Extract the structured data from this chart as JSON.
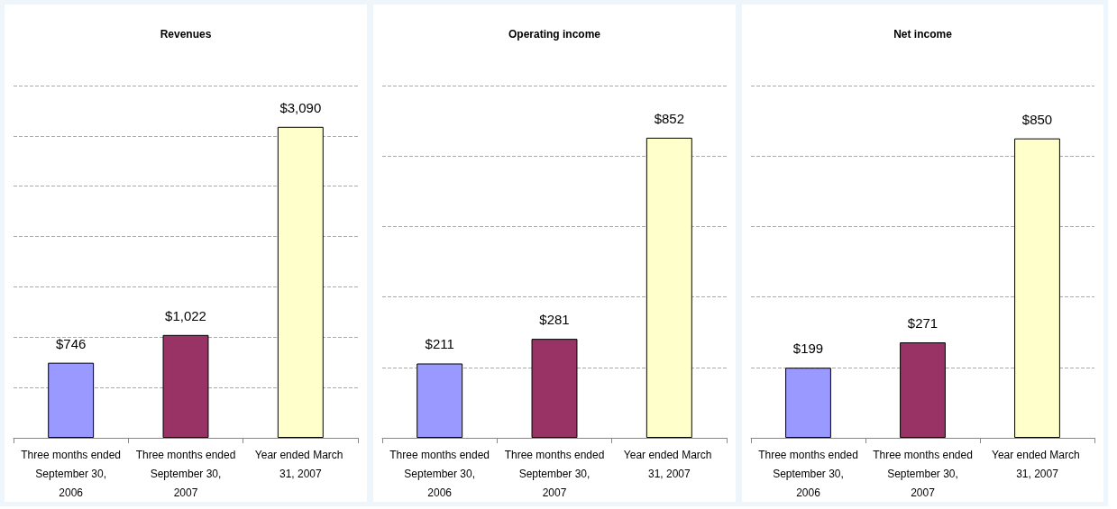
{
  "chart_data": [
    {
      "type": "bar",
      "title": "Revenues",
      "categories": [
        "Three months ended September 30, 2006",
        "Three months ended September 30, 2007",
        "Year ended March 31, 2007"
      ],
      "values": [
        746,
        1022,
        3090
      ],
      "value_labels": [
        "$746",
        "$1,022",
        "$3,090"
      ],
      "colors": [
        "#9999ff",
        "#993366",
        "#ffffcc"
      ],
      "grid": "y"
    },
    {
      "type": "bar",
      "title": "Operating income",
      "categories": [
        "Three months ended September 30, 2006",
        "Three months ended September 30, 2007",
        "Year ended March 31, 2007"
      ],
      "values": [
        211,
        281,
        852
      ],
      "value_labels": [
        "$211",
        "$281",
        "$852"
      ],
      "colors": [
        "#9999ff",
        "#993366",
        "#ffffcc"
      ],
      "grid": "y"
    },
    {
      "type": "bar",
      "title": "Net income",
      "categories": [
        "Three months ended September 30, 2006",
        "Three months ended September 30, 2007",
        "Year ended March 31, 2007"
      ],
      "values": [
        199,
        271,
        850
      ],
      "value_labels": [
        "$199",
        "$271",
        "$850"
      ],
      "colors": [
        "#9999ff",
        "#993366",
        "#ffffcc"
      ],
      "grid": "y"
    }
  ]
}
